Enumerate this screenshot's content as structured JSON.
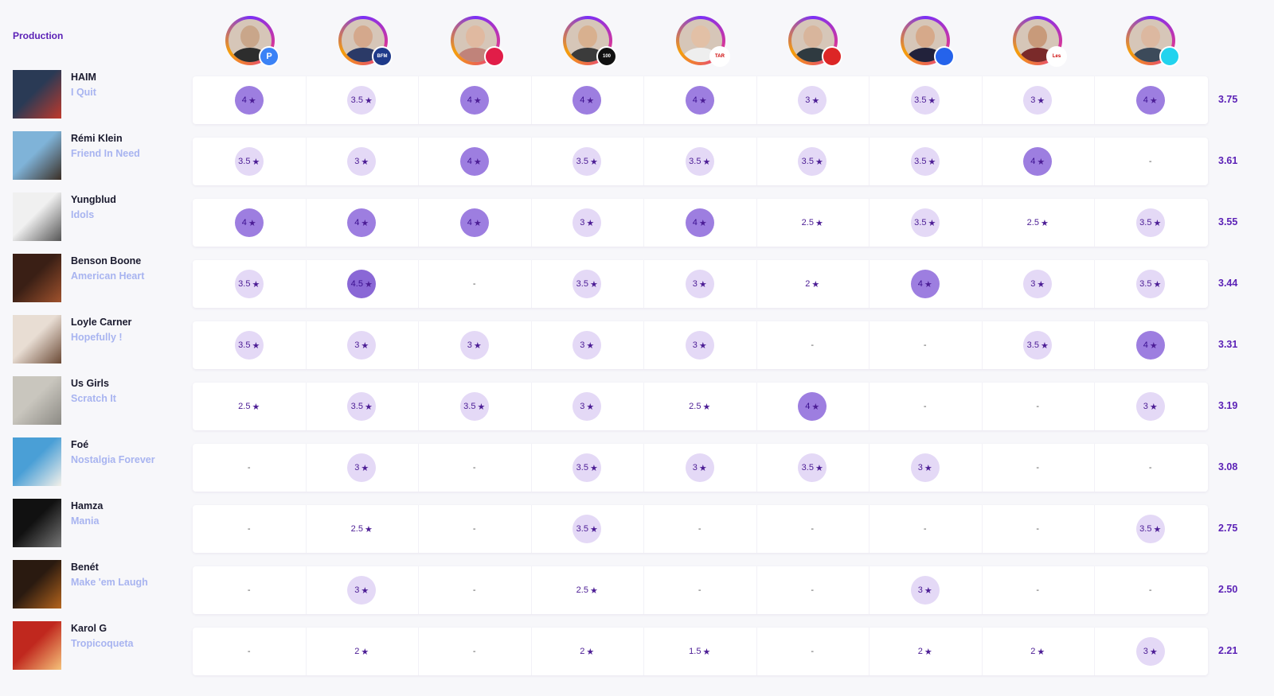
{
  "header": {
    "title": "Production"
  },
  "critics": [
    {
      "outlet_label": "P",
      "badge_color": "#3b82f6",
      "skin": "#c9a68a",
      "shirt": "#2d2d2d"
    },
    {
      "outlet_label": "BFM TV.",
      "badge_color": "#1e3a8a",
      "skin": "#d4a88c",
      "shirt": "#2b3a67"
    },
    {
      "outlet_label": "",
      "badge_color": "#e11d48",
      "skin": "#e0b9a0",
      "shirt": "#c0837a"
    },
    {
      "outlet_label": "100",
      "badge_color": "#111111",
      "skin": "#d8b08f",
      "shirt": "#3b3b3b"
    },
    {
      "outlet_label": "TARATATA",
      "badge_color": "#ffffff",
      "skin": "#e2c0a6",
      "shirt": "#eeeeee"
    },
    {
      "outlet_label": "",
      "badge_color": "#dc2626",
      "skin": "#d8b59c",
      "shirt": "#2f3a40"
    },
    {
      "outlet_label": "",
      "badge_color": "#2563eb",
      "skin": "#d6a98a",
      "shirt": "#22223b"
    },
    {
      "outlet_label": "Les Echos",
      "badge_color": "#ffffff",
      "skin": "#c89a7a",
      "shirt": "#7a2a2a"
    },
    {
      "outlet_label": "",
      "badge_color": "#22d3ee",
      "skin": "#dcb8a0",
      "shirt": "#3c4a5a"
    }
  ],
  "albums": [
    {
      "artist": "HAIM",
      "album": "I Quit",
      "avg": "3.75",
      "cover_bg": "#2a3a55",
      "cover_fg": "#c0392b",
      "ratings": [
        {
          "v": "4",
          "t": "hi"
        },
        {
          "v": "3.5",
          "t": "mid"
        },
        {
          "v": "4",
          "t": "hi"
        },
        {
          "v": "4",
          "t": "hi"
        },
        {
          "v": "4",
          "t": "hi"
        },
        {
          "v": "3",
          "t": "mid"
        },
        {
          "v": "3.5",
          "t": "mid"
        },
        {
          "v": "3",
          "t": "mid"
        },
        {
          "v": "4",
          "t": "hi"
        }
      ]
    },
    {
      "artist": "Rémi Klein",
      "album": "Friend In Need",
      "avg": "3.61",
      "cover_bg": "#7fb3d8",
      "cover_fg": "#3b2e25",
      "ratings": [
        {
          "v": "3.5",
          "t": "mid"
        },
        {
          "v": "3",
          "t": "mid"
        },
        {
          "v": "4",
          "t": "hi"
        },
        {
          "v": "3.5",
          "t": "mid"
        },
        {
          "v": "3.5",
          "t": "mid"
        },
        {
          "v": "3.5",
          "t": "mid"
        },
        {
          "v": "3.5",
          "t": "mid"
        },
        {
          "v": "4",
          "t": "hi"
        },
        {
          "v": "-",
          "t": "none"
        }
      ]
    },
    {
      "artist": "Yungblud",
      "album": "Idols",
      "avg": "3.55",
      "cover_bg": "#f0f0f0",
      "cover_fg": "#555555",
      "ratings": [
        {
          "v": "4",
          "t": "hi"
        },
        {
          "v": "4",
          "t": "hi"
        },
        {
          "v": "4",
          "t": "hi"
        },
        {
          "v": "3",
          "t": "mid"
        },
        {
          "v": "4",
          "t": "hi"
        },
        {
          "v": "2.5",
          "t": "lo"
        },
        {
          "v": "3.5",
          "t": "mid"
        },
        {
          "v": "2.5",
          "t": "lo"
        },
        {
          "v": "3.5",
          "t": "mid"
        }
      ]
    },
    {
      "artist": "Benson Boone",
      "album": "American Heart",
      "avg": "3.44",
      "cover_bg": "#3a1f15",
      "cover_fg": "#a0522d",
      "ratings": [
        {
          "v": "3.5",
          "t": "mid"
        },
        {
          "v": "4.5",
          "t": "top"
        },
        {
          "v": "-",
          "t": "none"
        },
        {
          "v": "3.5",
          "t": "mid"
        },
        {
          "v": "3",
          "t": "mid"
        },
        {
          "v": "2",
          "t": "lo"
        },
        {
          "v": "4",
          "t": "hi"
        },
        {
          "v": "3",
          "t": "mid"
        },
        {
          "v": "3.5",
          "t": "mid"
        }
      ]
    },
    {
      "artist": "Loyle Carner",
      "album": "Hopefully !",
      "avg": "3.31",
      "cover_bg": "#e8ddd3",
      "cover_fg": "#6b4a36",
      "ratings": [
        {
          "v": "3.5",
          "t": "mid"
        },
        {
          "v": "3",
          "t": "mid"
        },
        {
          "v": "3",
          "t": "mid"
        },
        {
          "v": "3",
          "t": "mid"
        },
        {
          "v": "3",
          "t": "mid"
        },
        {
          "v": "-",
          "t": "none"
        },
        {
          "v": "-",
          "t": "none"
        },
        {
          "v": "3.5",
          "t": "mid"
        },
        {
          "v": "4",
          "t": "hi"
        }
      ]
    },
    {
      "artist": "Us Girls",
      "album": "Scratch It",
      "avg": "3.19",
      "cover_bg": "#c9c6be",
      "cover_fg": "#8c8a84",
      "ratings": [
        {
          "v": "2.5",
          "t": "lo"
        },
        {
          "v": "3.5",
          "t": "mid"
        },
        {
          "v": "3.5",
          "t": "mid"
        },
        {
          "v": "3",
          "t": "mid"
        },
        {
          "v": "2.5",
          "t": "lo"
        },
        {
          "v": "4",
          "t": "hi"
        },
        {
          "v": "-",
          "t": "none"
        },
        {
          "v": "-",
          "t": "none"
        },
        {
          "v": "3",
          "t": "mid"
        }
      ]
    },
    {
      "artist": "Foé",
      "album": "Nostalgia Forever",
      "avg": "3.08",
      "cover_bg": "#4a9fd6",
      "cover_fg": "#f4f1ea",
      "ratings": [
        {
          "v": "-",
          "t": "none"
        },
        {
          "v": "3",
          "t": "mid"
        },
        {
          "v": "-",
          "t": "none"
        },
        {
          "v": "3.5",
          "t": "mid"
        },
        {
          "v": "3",
          "t": "mid"
        },
        {
          "v": "3.5",
          "t": "mid"
        },
        {
          "v": "3",
          "t": "mid"
        },
        {
          "v": "-",
          "t": "none"
        },
        {
          "v": "-",
          "t": "none"
        }
      ]
    },
    {
      "artist": "Hamza",
      "album": "Mania",
      "avg": "2.75",
      "cover_bg": "#111111",
      "cover_fg": "#777777",
      "ratings": [
        {
          "v": "-",
          "t": "none"
        },
        {
          "v": "2.5",
          "t": "lo"
        },
        {
          "v": "-",
          "t": "none"
        },
        {
          "v": "3.5",
          "t": "mid"
        },
        {
          "v": "-",
          "t": "none"
        },
        {
          "v": "-",
          "t": "none"
        },
        {
          "v": "-",
          "t": "none"
        },
        {
          "v": "-",
          "t": "none"
        },
        {
          "v": "3.5",
          "t": "mid"
        }
      ]
    },
    {
      "artist": "Benét",
      "album": "Make 'em Laugh",
      "avg": "2.50",
      "cover_bg": "#2a1a10",
      "cover_fg": "#b5651d",
      "ratings": [
        {
          "v": "-",
          "t": "none"
        },
        {
          "v": "3",
          "t": "mid"
        },
        {
          "v": "-",
          "t": "none"
        },
        {
          "v": "2.5",
          "t": "lo"
        },
        {
          "v": "-",
          "t": "none"
        },
        {
          "v": "-",
          "t": "none"
        },
        {
          "v": "3",
          "t": "mid"
        },
        {
          "v": "-",
          "t": "none"
        },
        {
          "v": "-",
          "t": "none"
        }
      ]
    },
    {
      "artist": "Karol G",
      "album": "Tropicoqueta",
      "avg": "2.21",
      "cover_bg": "#c0281e",
      "cover_fg": "#f5c27a",
      "ratings": [
        {
          "v": "-",
          "t": "none"
        },
        {
          "v": "2",
          "t": "lo"
        },
        {
          "v": "-",
          "t": "none"
        },
        {
          "v": "2",
          "t": "lo"
        },
        {
          "v": "1.5",
          "t": "lo"
        },
        {
          "v": "-",
          "t": "none"
        },
        {
          "v": "2",
          "t": "lo"
        },
        {
          "v": "2",
          "t": "lo"
        },
        {
          "v": "3",
          "t": "mid"
        }
      ]
    }
  ],
  "icons": {
    "star": "star-icon"
  }
}
